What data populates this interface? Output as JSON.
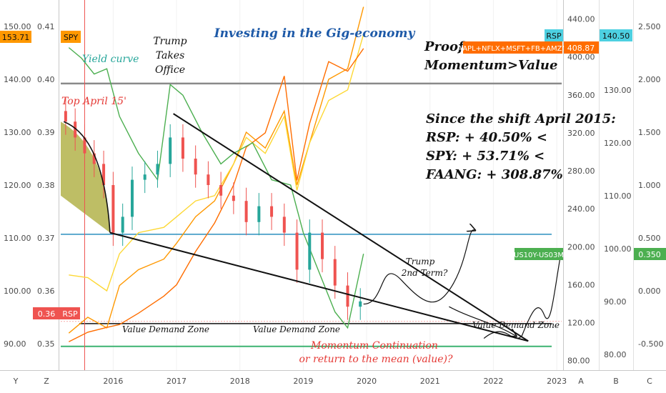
{
  "title": "Investing in the Gig-economy",
  "annotations": {
    "yield_curve": "Yield curve",
    "trump_takes_office": [
      "Trump",
      "Takes",
      "Office"
    ],
    "top_april": "Top April 15'",
    "proof": [
      "Proof:",
      "Momentum>Value"
    ],
    "since_shift": [
      "Since the shift April 2015:",
      "RSP: + 40.50% <",
      "SPY: + 53.71% <",
      "FAANG: + 308.87%"
    ],
    "trump_2nd_term": [
      "Trump",
      "2nd Term?"
    ],
    "value_demand_zone": "Value Demand Zone",
    "momentum_question": [
      "Momentum Continuation",
      "or return to  the mean (value)?"
    ]
  },
  "badges": {
    "spy_price": "153.71",
    "spy_label": "SPY",
    "rsp_value": "0.36",
    "rsp_label": "RSP",
    "faang_label": "AAPL+NFLX+MSFT+FB+AMZN",
    "faang_value": "408.87",
    "rsp_top_label": "RSP",
    "rsp_top_value": "140.50",
    "spread_label": "US10Y-US03M",
    "spread_value": "0.350"
  },
  "colors": {
    "spy_line": "#ff9800",
    "rsp_candle_up": "#26a69a",
    "rsp_candle_down": "#ef5350",
    "faang_line": "#ff6d00",
    "rsp_line": "#fdd835",
    "yield_line": "#4caf50",
    "title": "#1e5aa8",
    "wedge_fill": "#a8a832",
    "blue_level": "#2a8fbf",
    "gray_level": "#8a8a8a",
    "green_level": "#3cb371",
    "red_note": "#e53935",
    "teal_note": "#26a69a"
  },
  "chart_data": {
    "type": "line",
    "x_ticks": [
      "2016",
      "2017",
      "2018",
      "2019",
      "2020",
      "2021",
      "2022",
      "2023"
    ],
    "axes": {
      "spy_left": {
        "ticks": [
          "150.00",
          "140.00",
          "130.00",
          "120.00",
          "110.00",
          "100.00",
          "90.00"
        ],
        "range": [
          85,
          155
        ]
      },
      "yield_left": {
        "ticks": [
          "0.41",
          "0.40",
          "0.39",
          "0.38",
          "0.37",
          "0.36",
          "0.35"
        ],
        "range": [
          0.345,
          0.415
        ]
      },
      "faang_right": {
        "ticks": [
          "440.00",
          "400.00",
          "360.00",
          "320.00",
          "280.00",
          "240.00",
          "200.00",
          "160.00",
          "120.00",
          "80.00"
        ],
        "range": [
          70,
          460
        ]
      },
      "rsp_right": {
        "ticks": [
          "130.00",
          "120.00",
          "110.00",
          "100.00",
          "90.00",
          "80.00"
        ],
        "range": [
          77,
          147
        ]
      },
      "spread_right": {
        "ticks": [
          "2.500",
          "2.000",
          "1.500",
          "1.000",
          "0.500",
          "0.000",
          "-0.500"
        ],
        "range": [
          -0.75,
          2.75
        ]
      },
      "axis_letters": [
        "Y",
        "Z",
        "A",
        "B",
        "C"
      ]
    },
    "levels": {
      "gray_top": 139.2,
      "blue_mid": 110.7,
      "black_low": 93.8,
      "green_floor": 89.5
    },
    "series": [
      {
        "name": "SPY",
        "color": "#ff9800",
        "x": [
          2015.3,
          2015.6,
          2015.9,
          2016.1,
          2016.4,
          2016.8,
          2017.0,
          2017.3,
          2017.6,
          2017.9,
          2018.1,
          2018.4,
          2018.7,
          2018.9,
          2019.1,
          2019.4,
          2019.7,
          2019.95
        ],
        "values": [
          92.0,
          95.0,
          93.0,
          101.0,
          104.0,
          106.0,
          109.0,
          114.0,
          117.0,
          124.0,
          130.0,
          127.0,
          134.0,
          120.0,
          128.0,
          140.0,
          142.0,
          153.7
        ]
      },
      {
        "name": "RSP",
        "color": "#fdd835",
        "x": [
          2015.3,
          2015.6,
          2015.9,
          2016.1,
          2016.4,
          2016.8,
          2017.0,
          2017.3,
          2017.6,
          2017.9,
          2018.1,
          2018.4,
          2018.7,
          2018.9,
          2019.1,
          2019.4,
          2019.7,
          2019.95
        ],
        "values": [
          95.0,
          94.5,
          92.0,
          99.0,
          103.0,
          104.0,
          106.0,
          109.0,
          110.0,
          116.0,
          121.0,
          118.0,
          125.0,
          111.0,
          120.0,
          128.0,
          130.0,
          140.5
        ]
      },
      {
        "name": "AAPL+NFLX+MSFT+FB+AMZN",
        "color": "#ff6d00",
        "x": [
          2015.3,
          2015.6,
          2015.9,
          2016.1,
          2016.4,
          2016.8,
          2017.0,
          2017.3,
          2017.6,
          2017.9,
          2018.1,
          2018.4,
          2018.7,
          2018.9,
          2019.1,
          2019.4,
          2019.7,
          2019.95
        ],
        "values": [
          100.0,
          110.0,
          115.0,
          118.0,
          130.0,
          148.0,
          160.0,
          195.0,
          225.0,
          265.0,
          305.0,
          320.0,
          380.0,
          270.0,
          330.0,
          395.0,
          385.0,
          408.9
        ]
      },
      {
        "name": "US10Y-US03M",
        "color": "#4caf50",
        "x": [
          2015.3,
          2015.5,
          2015.7,
          2015.9,
          2016.1,
          2016.4,
          2016.7,
          2016.9,
          2017.1,
          2017.4,
          2017.7,
          2017.9,
          2018.2,
          2018.5,
          2018.8,
          2019.0,
          2019.3,
          2019.5,
          2019.7,
          2019.95
        ],
        "values": [
          2.3,
          2.2,
          2.05,
          2.1,
          1.65,
          1.3,
          1.05,
          1.95,
          1.85,
          1.5,
          1.2,
          1.3,
          1.4,
          1.05,
          1.0,
          0.55,
          0.1,
          -0.2,
          -0.35,
          0.35
        ]
      }
    ],
    "candles_rsp_overlay": {
      "comment": "RSP weekly-style candles plotted on the yield (0.35-0.41) scale",
      "x": [
        2015.25,
        2015.4,
        2015.55,
        2015.7,
        2015.85,
        2016.0,
        2016.15,
        2016.3,
        2016.5,
        2016.7,
        2016.9,
        2017.1,
        2017.3,
        2017.5,
        2017.7,
        2017.9,
        2018.1,
        2018.3,
        2018.5,
        2018.7,
        2018.9,
        2019.1,
        2019.3,
        2019.5,
        2019.7,
        2019.9
      ],
      "values": [
        0.392,
        0.389,
        0.386,
        0.384,
        0.38,
        0.371,
        0.374,
        0.381,
        0.382,
        0.384,
        0.389,
        0.385,
        0.382,
        0.38,
        0.378,
        0.377,
        0.373,
        0.376,
        0.374,
        0.371,
        0.364,
        0.371,
        0.366,
        0.361,
        0.357,
        0.358
      ]
    }
  }
}
